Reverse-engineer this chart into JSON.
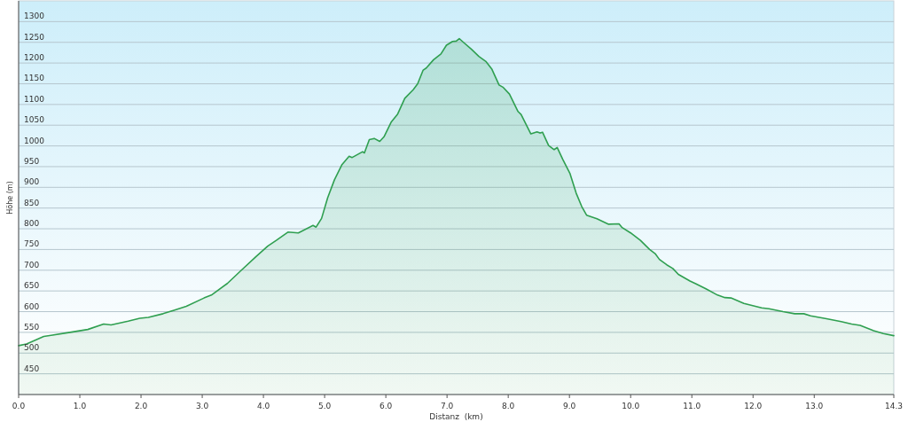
{
  "chart_data": {
    "type": "area",
    "xlabel": "Distanz  (km)",
    "ylabel": "Höhe (m)",
    "x": [
      0,
      0.13,
      0.41,
      0.53,
      0.84,
      1.13,
      1.39,
      1.51,
      1.79,
      1.98,
      2.12,
      2.36,
      2.55,
      2.74,
      3.03,
      3.15,
      3.41,
      3.64,
      3.88,
      4.07,
      4.21,
      4.4,
      4.57,
      4.81,
      4.86,
      4.95,
      5.05,
      5.16,
      5.28,
      5.4,
      5.45,
      5.62,
      5.65,
      5.73,
      5.81,
      5.9,
      5.97,
      6.09,
      6.19,
      6.31,
      6.45,
      6.52,
      6.61,
      6.66,
      6.78,
      6.9,
      6.99,
      7.09,
      7.15,
      7.2,
      7.26,
      7.4,
      7.52,
      7.64,
      7.73,
      7.85,
      7.92,
      8.02,
      8.16,
      8.21,
      8.37,
      8.47,
      8.52,
      8.56,
      8.66,
      8.75,
      8.8,
      8.89,
      9.01,
      9.11,
      9.2,
      9.28,
      9.45,
      9.64,
      9.81,
      9.86,
      10,
      10.16,
      10.31,
      10.4,
      10.47,
      10.59,
      10.69,
      10.78,
      10.97,
      11.07,
      11.23,
      11.42,
      11.54,
      11.64,
      11.85,
      12.14,
      12.26,
      12.49,
      12.68,
      12.83,
      12.94,
      13.2,
      13.44,
      13.61,
      13.75,
      13.97,
      14.13,
      14.3
    ],
    "values": [
      518,
      522,
      540,
      543,
      550,
      557,
      570,
      568,
      577,
      584,
      586,
      595,
      604,
      613,
      633,
      640,
      668,
      700,
      733,
      758,
      772,
      792,
      790,
      808,
      804,
      825,
      875,
      918,
      954,
      975,
      972,
      986,
      983,
      1015,
      1018,
      1011,
      1022,
      1058,
      1076,
      1115,
      1136,
      1150,
      1183,
      1188,
      1208,
      1222,
      1243,
      1252,
      1253,
      1259,
      1251,
      1233,
      1216,
      1203,
      1186,
      1147,
      1141,
      1125,
      1083,
      1076,
      1029,
      1034,
      1031,
      1033,
      1001,
      991,
      996,
      968,
      933,
      886,
      854,
      833,
      824,
      811,
      812,
      803,
      790,
      772,
      750,
      740,
      726,
      713,
      704,
      690,
      674,
      667,
      655,
      640,
      634,
      633,
      620,
      609,
      607,
      600,
      595,
      595,
      590,
      583,
      576,
      570,
      567,
      554,
      547,
      542
    ],
    "color": "#2f9f50",
    "xlim": [
      0,
      14.3
    ],
    "ylim": [
      400,
      1350
    ],
    "xticks": [
      {
        "value": 0,
        "label": "0.0"
      },
      {
        "value": 1,
        "label": "1.0"
      },
      {
        "value": 2,
        "label": "2.0"
      },
      {
        "value": 3,
        "label": "3.0"
      },
      {
        "value": 4,
        "label": "4.0"
      },
      {
        "value": 5,
        "label": "5.0"
      },
      {
        "value": 6,
        "label": "6.0"
      },
      {
        "value": 7,
        "label": "7.0"
      },
      {
        "value": 8,
        "label": "8.0"
      },
      {
        "value": 9,
        "label": "9.0"
      },
      {
        "value": 10,
        "label": "10.0"
      },
      {
        "value": 11,
        "label": "11.0"
      },
      {
        "value": 12,
        "label": "12.0"
      },
      {
        "value": 13,
        "label": "13.0"
      },
      {
        "value": 14.3,
        "label": "14.3"
      }
    ],
    "yticks": [
      450,
      500,
      550,
      600,
      650,
      700,
      750,
      800,
      850,
      900,
      950,
      1000,
      1050,
      1100,
      1150,
      1200,
      1250,
      1300
    ],
    "grid": "y"
  }
}
